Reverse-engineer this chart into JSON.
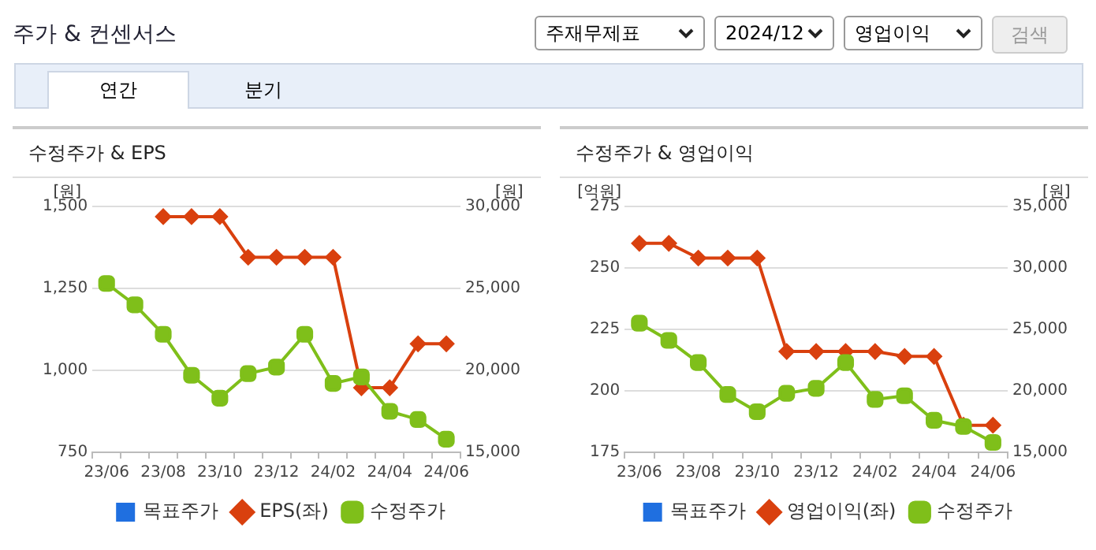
{
  "chart_data": [
    {
      "type": "other",
      "title": "주가 & 컨센서스",
      "annotations": [
        "주재무제표",
        "2024/12",
        "영업이익",
        "검색",
        "연간",
        "분기"
      ]
    },
    {
      "type": "line",
      "title": "수정주가 & EPS",
      "ylabel": "[원]",
      "y2label": "[원]",
      "categories": [
        "23/06",
        null,
        "23/08",
        null,
        "23/10",
        null,
        "23/12",
        null,
        "24/02",
        null,
        "24/04",
        null,
        "24/06"
      ],
      "series": [
        {
          "name": "목표주가",
          "type": "bar",
          "color": "#1f6fe0",
          "values": [
            null,
            null,
            null,
            null,
            null,
            null,
            null,
            null,
            null,
            null,
            null,
            null,
            null
          ]
        },
        {
          "name": "EPS(좌)",
          "color": "#d9400e",
          "marker": "diamond",
          "values": [
            null,
            null,
            1469,
            1469,
            1469,
            1345,
            1345,
            1345,
            1345,
            947,
            947,
            1081,
            1081
          ]
        },
        {
          "name": "수정주가",
          "color": "#7fbf1a",
          "marker": "square",
          "axis": "y2",
          "values": [
            25300,
            24000,
            22200,
            19700,
            18300,
            19800,
            20200,
            22200,
            19200,
            19600,
            17500,
            17000,
            15800
          ]
        }
      ],
      "ylim": [
        750,
        1500
      ],
      "yticks": [
        750,
        {
          "value": 1000,
          "label": "1,000"
        },
        {
          "value": 1250,
          "label": "1,250"
        },
        {
          "value": 1500,
          "label": "1,500"
        }
      ],
      "y2lim": [
        15000,
        30000
      ],
      "y2ticks": [
        {
          "value": 15000,
          "label": "15,000"
        },
        {
          "value": 20000,
          "label": "20,000"
        },
        {
          "value": 25000,
          "label": "25,000"
        },
        {
          "value": 30000,
          "label": "30,000"
        }
      ],
      "grid": "y",
      "legend": "bottom",
      "line_style": "solid"
    },
    {
      "type": "line",
      "title": "수정주가 & 영업이익",
      "ylabel": "[억원]",
      "y2label": "[원]",
      "categories": [
        "23/06",
        null,
        "23/08",
        null,
        "23/10",
        null,
        "23/12",
        null,
        "24/02",
        null,
        "24/04",
        null,
        "24/06"
      ],
      "series": [
        {
          "name": "목표주가",
          "type": "bar",
          "color": "#1f6fe0",
          "values": [
            null,
            null,
            null,
            null,
            null,
            null,
            null,
            null,
            null,
            null,
            null,
            null,
            null
          ]
        },
        {
          "name": "영업이익(좌)",
          "color": "#d9400e",
          "marker": "diamond",
          "values": [
            260,
            260,
            254,
            254,
            254,
            216,
            216,
            216,
            216,
            214,
            214,
            186,
            186
          ]
        },
        {
          "name": "수정주가",
          "color": "#7fbf1a",
          "marker": "square",
          "axis": "y2",
          "values": [
            25500,
            24100,
            22300,
            19700,
            18300,
            19800,
            20200,
            22300,
            19300,
            19600,
            17600,
            17100,
            15800
          ]
        }
      ],
      "ylim": [
        175,
        275
      ],
      "yticks": [
        175,
        200,
        225,
        250,
        275
      ],
      "y2lim": [
        15000,
        35000
      ],
      "y2ticks": [
        {
          "value": 15000,
          "label": "15,000"
        },
        {
          "value": 20000,
          "label": "20,000"
        },
        {
          "value": 25000,
          "label": "25,000"
        },
        {
          "value": 30000,
          "label": "30,000"
        },
        {
          "value": 35000,
          "label": "35,000"
        }
      ],
      "grid": "y",
      "legend": "bottom",
      "line_style": "solid"
    }
  ]
}
